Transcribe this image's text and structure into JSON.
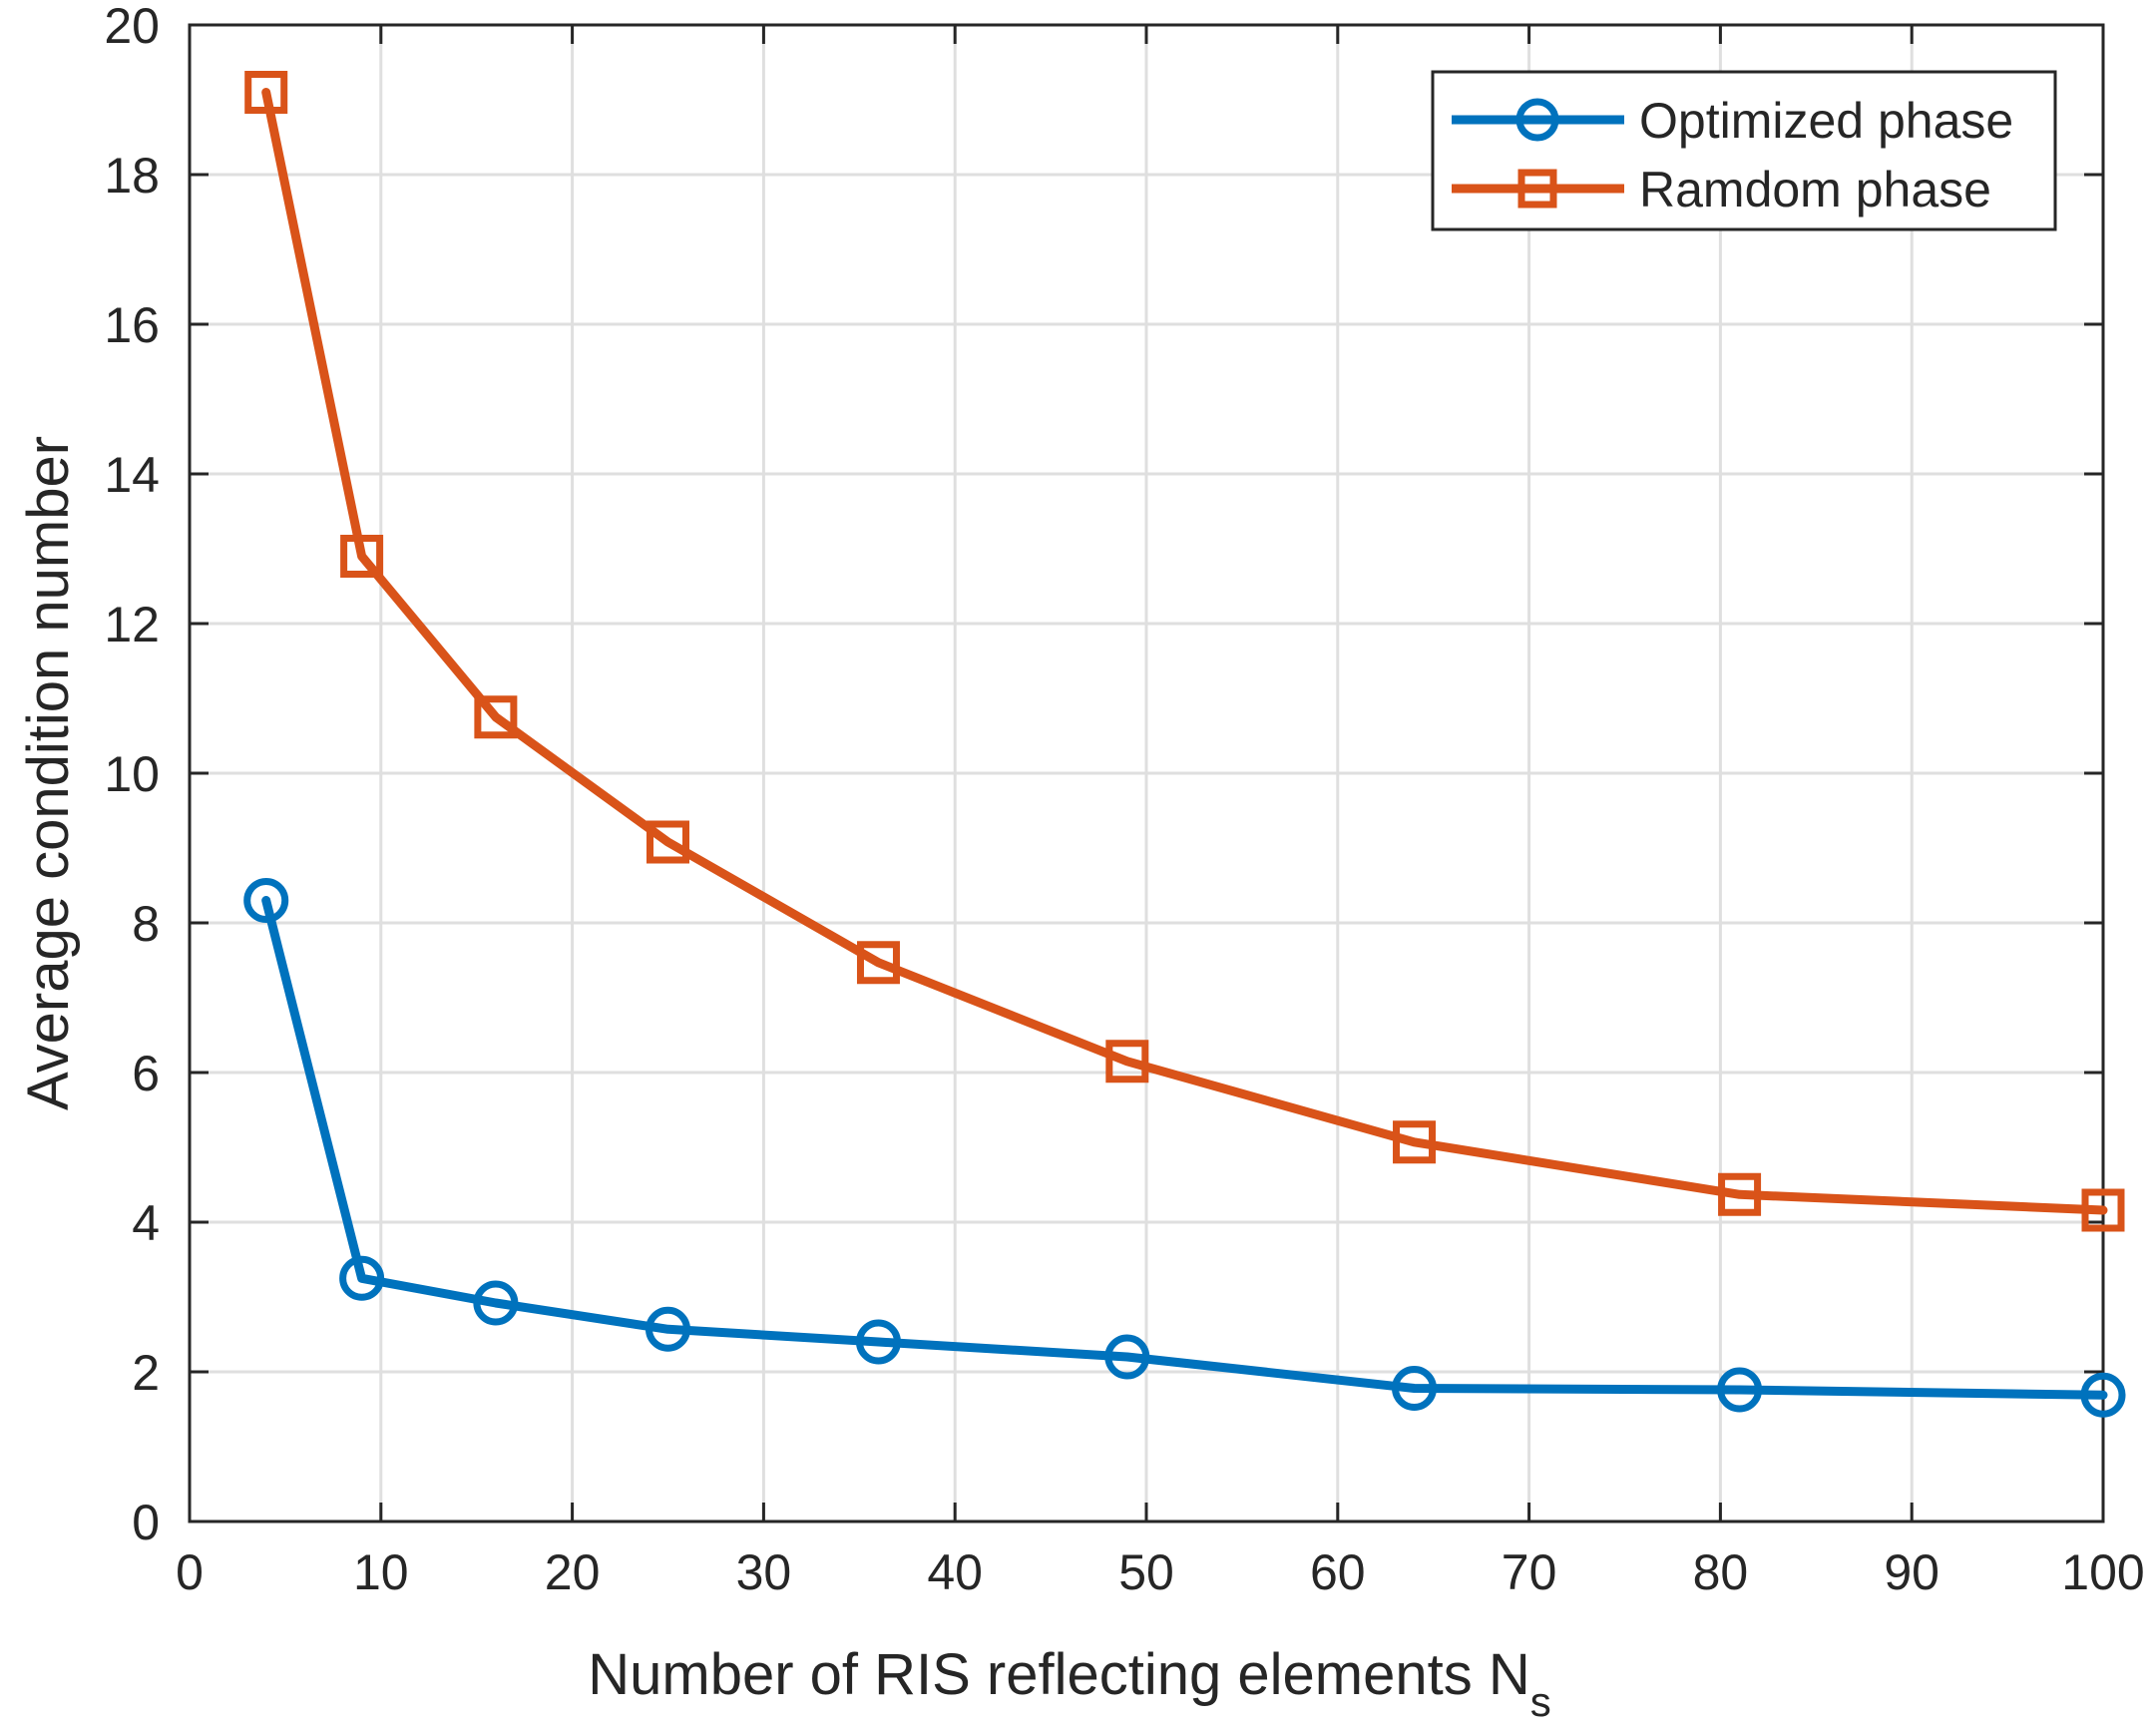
{
  "chart_data": {
    "type": "line",
    "title": "",
    "xlabel": "Number of RIS reflecting elements N",
    "xlabel_subscript": "s",
    "ylabel": "Average  condition number",
    "xlim": [
      0,
      100
    ],
    "ylim": [
      0,
      20
    ],
    "xticks": [
      0,
      10,
      20,
      30,
      40,
      50,
      60,
      70,
      80,
      90,
      100
    ],
    "yticks": [
      0,
      2,
      4,
      6,
      8,
      10,
      12,
      14,
      16,
      18,
      20
    ],
    "grid": true,
    "legend_position": "top-right",
    "x": [
      4,
      9,
      16,
      25,
      36,
      49,
      64,
      81,
      100
    ],
    "series": [
      {
        "name": "Optimized phase",
        "marker": "circle",
        "color": "#0072BD",
        "values": [
          8.3,
          3.25,
          2.92,
          2.57,
          2.4,
          2.2,
          1.78,
          1.76,
          1.69
        ]
      },
      {
        "name": "Ramdom phase",
        "marker": "square",
        "color": "#D95319",
        "values": [
          19.1,
          12.9,
          10.75,
          9.08,
          7.47,
          6.15,
          5.07,
          4.37,
          4.16
        ]
      }
    ]
  }
}
